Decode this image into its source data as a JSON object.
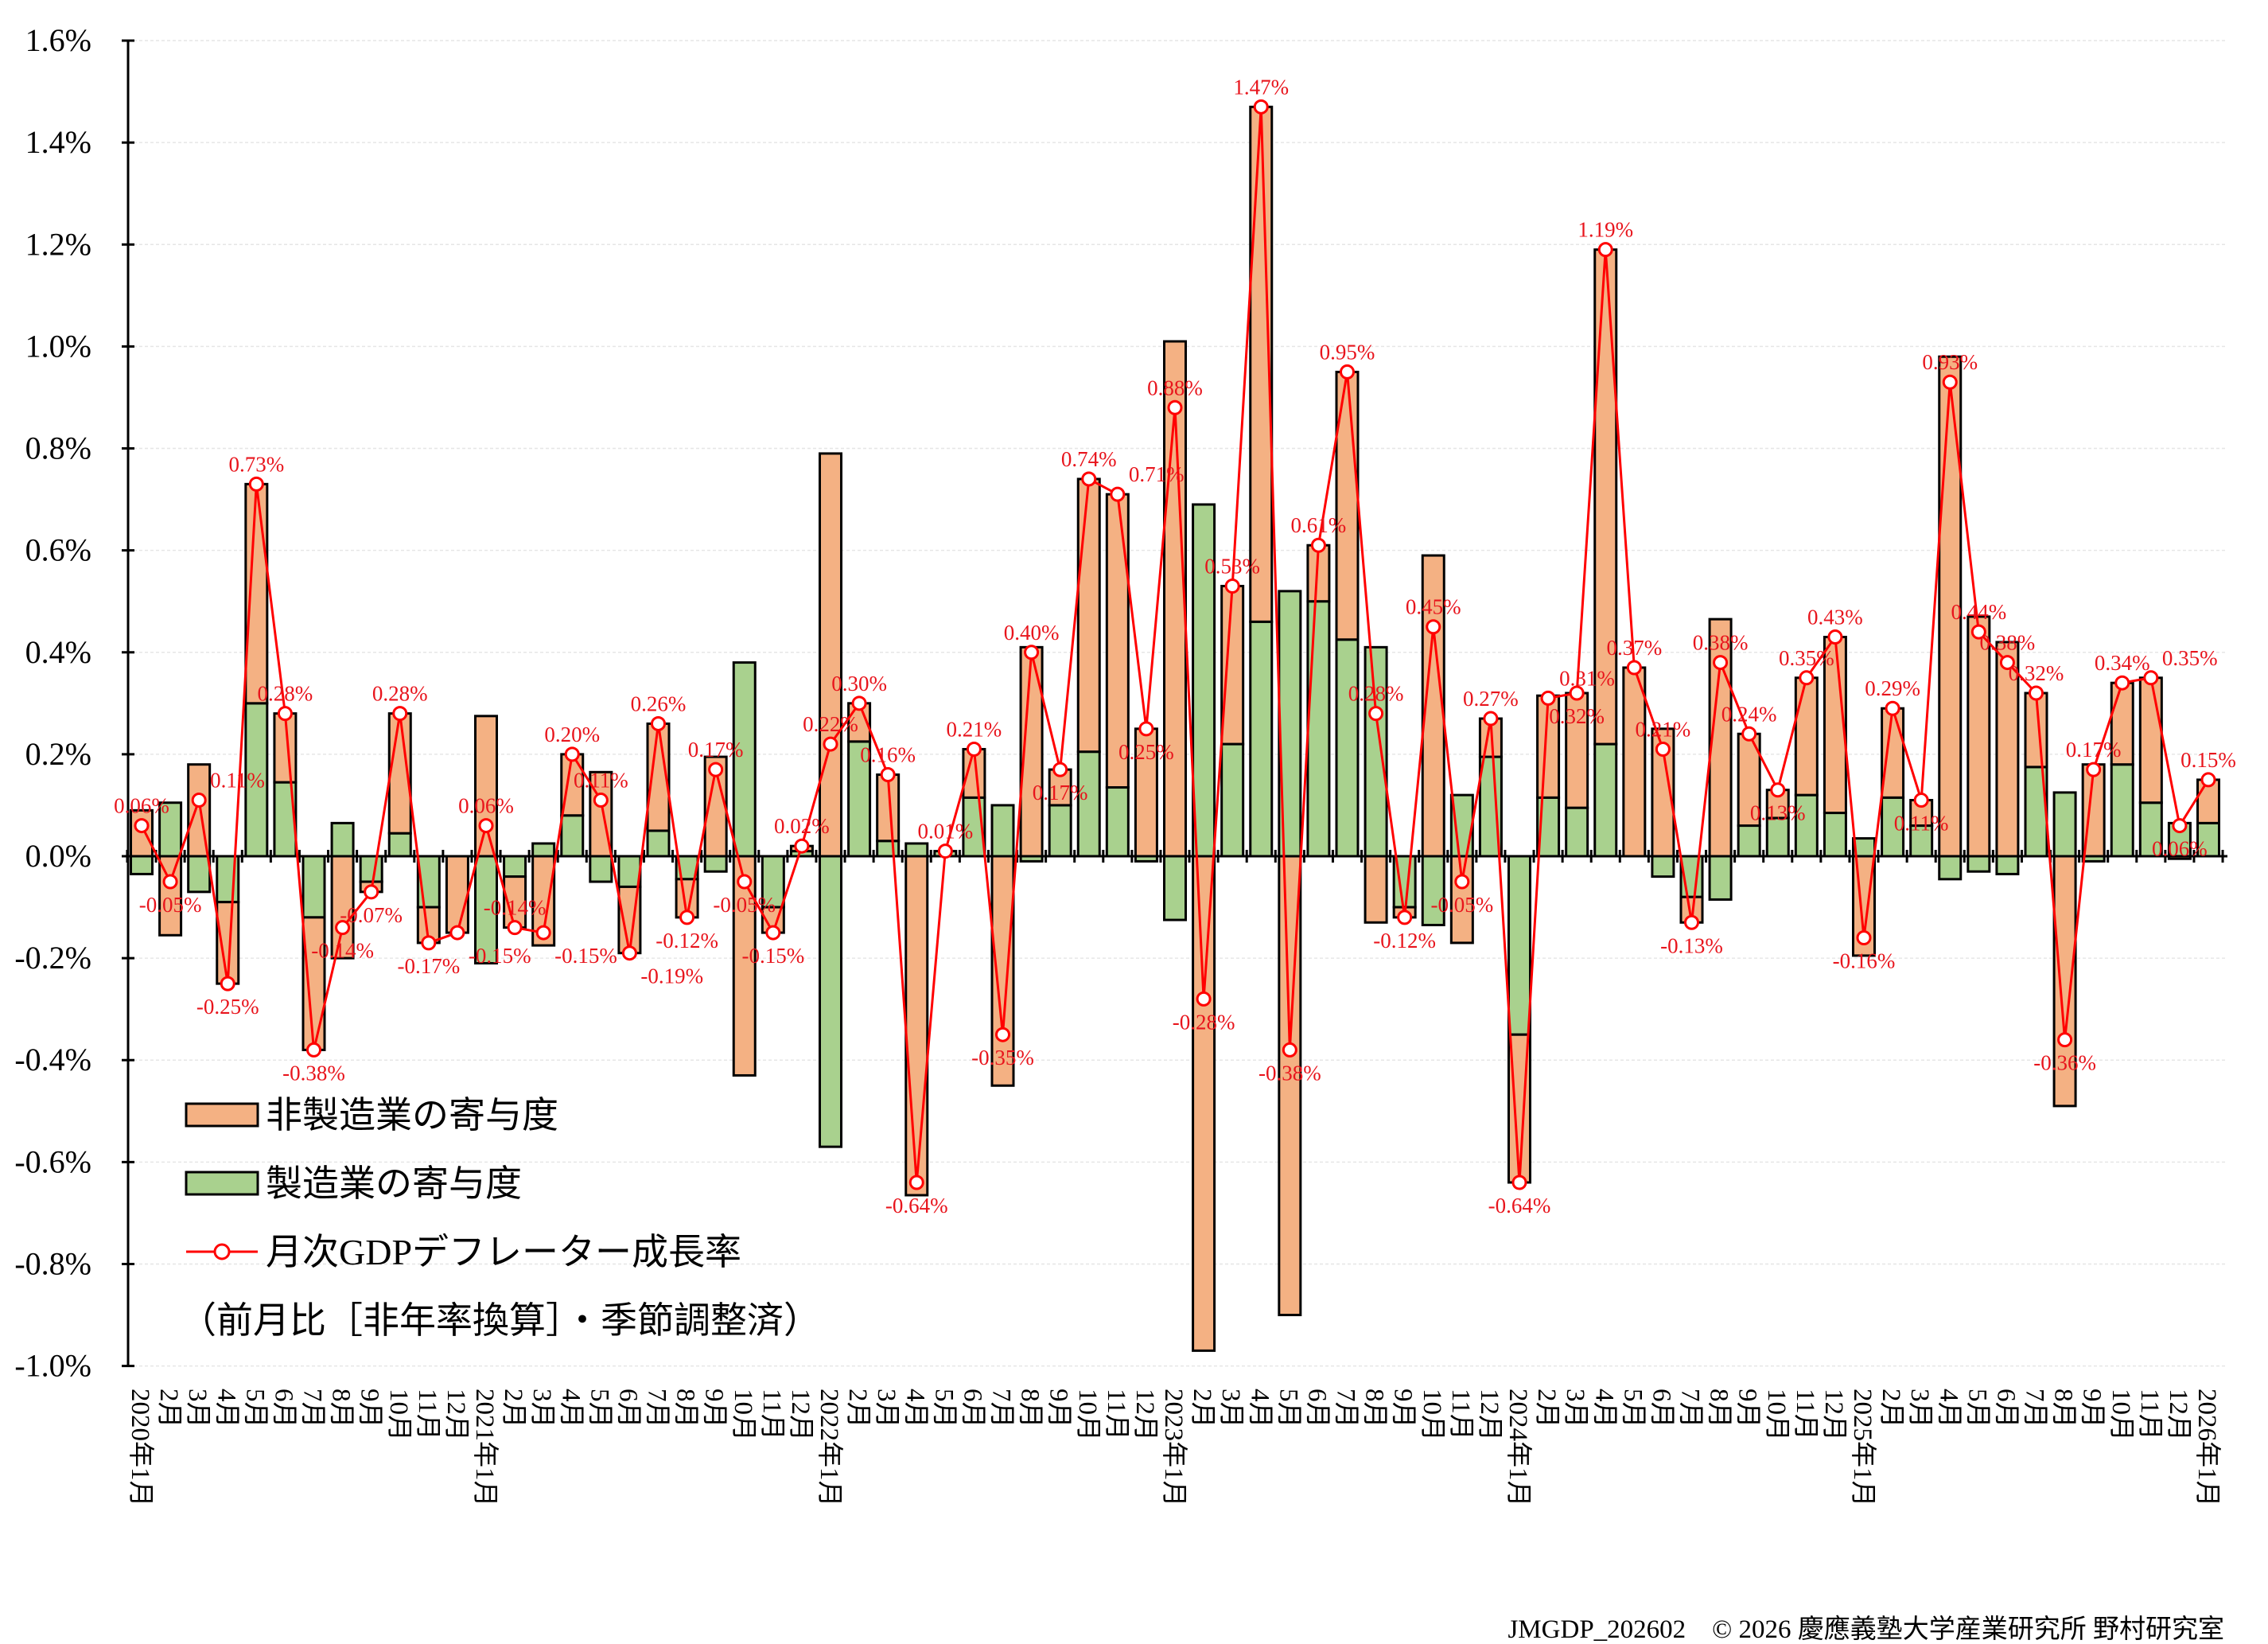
{
  "chart_data": {
    "type": "bar+line",
    "title": "",
    "xlabel": "",
    "ylabel": "",
    "ylim": [
      -1.0,
      1.6
    ],
    "y_ticks": [
      "-1.0%",
      "-0.8%",
      "-0.6%",
      "-0.4%",
      "-0.2%",
      "0.0%",
      "0.2%",
      "0.4%",
      "0.6%",
      "0.8%",
      "1.0%",
      "1.2%",
      "1.4%",
      "1.6%"
    ],
    "grid": true,
    "legend_position": "bottom-left",
    "categories": [
      "2020年1月",
      "2月",
      "3月",
      "4月",
      "5月",
      "6月",
      "7月",
      "8月",
      "9月",
      "10月",
      "11月",
      "12月",
      "2021年1月",
      "2月",
      "3月",
      "4月",
      "5月",
      "6月",
      "7月",
      "8月",
      "9月",
      "10月",
      "11月",
      "12月",
      "2022年1月",
      "2月",
      "3月",
      "4月",
      "5月",
      "6月",
      "7月",
      "8月",
      "9月",
      "10月",
      "11月",
      "12月",
      "2023年1月",
      "2月",
      "3月",
      "4月",
      "5月",
      "6月",
      "7月",
      "8月",
      "9月",
      "10月",
      "11月",
      "12月",
      "2024年1月",
      "2月",
      "3月",
      "4月",
      "5月",
      "6月",
      "7月",
      "8月",
      "9月",
      "10月",
      "11月",
      "12月",
      "2025年1月",
      "2月",
      "3月",
      "4月",
      "5月",
      "6月",
      "7月",
      "8月",
      "9月",
      "10月",
      "11月",
      "12月",
      "2026年1月"
    ],
    "series": [
      {
        "name": "非製造業の寄与度",
        "kind": "bar",
        "color": "#f4b183",
        "values": [
          0.09,
          -0.155,
          0.18,
          -0.16,
          0.43,
          0.135,
          -0.26,
          -0.2,
          -0.02,
          0.235,
          -0.07,
          -0.15,
          0.275,
          -0.1,
          -0.175,
          0.12,
          0.165,
          -0.13,
          0.21,
          -0.075,
          0.195,
          -0.43,
          -0.05,
          0.01,
          0.79,
          0.075,
          0.13,
          -0.665,
          0.0,
          0.095,
          -0.45,
          0.41,
          0.07,
          0.535,
          0.575,
          0.25,
          1.01,
          -0.97,
          0.31,
          1.01,
          -0.9,
          0.11,
          0.525,
          -0.13,
          -0.02,
          0.59,
          -0.17,
          0.075,
          -0.29,
          0.2,
          0.225,
          0.97,
          0.37,
          0.25,
          -0.05,
          0.465,
          0.18,
          0.055,
          0.23,
          0.345,
          -0.195,
          0.175,
          0.05,
          0.98,
          0.47,
          0.42,
          0.145,
          -0.49,
          0.18,
          0.16,
          0.245,
          -0.005,
          0.085
        ]
      },
      {
        "name": "製造業の寄与度",
        "kind": "bar",
        "color": "#a9d18e",
        "values": [
          -0.035,
          0.105,
          -0.07,
          -0.09,
          0.3,
          0.145,
          -0.12,
          0.065,
          -0.05,
          0.045,
          -0.1,
          0.0,
          -0.21,
          -0.04,
          0.025,
          0.08,
          -0.05,
          -0.06,
          0.05,
          -0.045,
          -0.03,
          0.38,
          -0.1,
          0.01,
          -0.57,
          0.225,
          0.03,
          0.025,
          0.01,
          0.115,
          0.1,
          -0.01,
          0.1,
          0.205,
          0.135,
          -0.01,
          -0.125,
          0.69,
          0.22,
          0.46,
          0.52,
          0.5,
          0.425,
          0.41,
          -0.1,
          -0.135,
          0.12,
          0.195,
          -0.35,
          0.115,
          0.095,
          0.22,
          0.0,
          -0.04,
          -0.08,
          -0.085,
          0.06,
          0.075,
          0.12,
          0.085,
          0.035,
          0.115,
          0.06,
          -0.045,
          -0.03,
          -0.035,
          0.175,
          0.125,
          -0.01,
          0.18,
          0.105,
          0.065,
          0.065
        ]
      },
      {
        "name": "月次GDPデフレーター成長率",
        "kind": "line",
        "color": "#ff0000",
        "values": [
          0.06,
          -0.05,
          0.11,
          -0.25,
          0.73,
          0.28,
          -0.38,
          -0.14,
          -0.07,
          0.28,
          -0.17,
          -0.15,
          0.06,
          -0.14,
          -0.15,
          0.2,
          0.11,
          -0.19,
          0.26,
          -0.12,
          0.17,
          -0.05,
          -0.15,
          0.02,
          0.22,
          0.3,
          0.16,
          -0.64,
          0.01,
          0.21,
          -0.35,
          0.4,
          0.17,
          0.74,
          0.71,
          0.25,
          0.88,
          -0.28,
          0.53,
          1.47,
          -0.38,
          0.61,
          0.95,
          0.28,
          -0.12,
          0.45,
          -0.05,
          0.27,
          -0.64,
          0.31,
          0.32,
          1.19,
          0.37,
          0.21,
          -0.13,
          0.38,
          0.24,
          0.13,
          0.35,
          0.43,
          -0.16,
          0.29,
          0.11,
          0.93,
          0.44,
          0.38,
          0.32,
          -0.36,
          0.17,
          0.34,
          0.35,
          0.06,
          0.15
        ],
        "labels": [
          "0.06%",
          "-0.05%",
          "0.11%",
          "-0.25%",
          "0.73%",
          "0.28%",
          "-0.38%",
          "-0.14%",
          "-0.07%",
          "0.28%",
          "-0.17%",
          "-0.15%",
          "0.06%",
          "-0.14%",
          "-0.15%",
          "0.20%",
          "0.11%",
          "-0.19%",
          "0.26%",
          "-0.12%",
          "0.17%",
          "-0.05%",
          "-0.15%",
          "0.02%",
          "0.22%",
          "0.30%",
          "0.16%",
          "-0.64%",
          "0.01%",
          "0.21%",
          "-0.35%",
          "0.40%",
          "0.17%",
          "0.74%",
          "0.71%",
          "0.25%",
          "0.88%",
          "-0.28%",
          "0.53%",
          "1.47%",
          "-0.38%",
          "0.61%",
          "0.95%",
          "0.28%",
          "-0.12%",
          "0.45%",
          "-0.05%",
          "0.27%",
          "-0.64%",
          "0.31%",
          "0.32%",
          "1.19%",
          "0.37%",
          "0.21%",
          "-0.13%",
          "0.38%",
          "0.24%",
          "0.13%",
          "0.35%",
          "0.43%",
          "-0.16%",
          "0.29%",
          "0.11%",
          "0.93%",
          "0.44%",
          "0.38%",
          "0.32%",
          "-0.36%",
          "0.17%",
          "0.34%",
          "0.35%",
          "0.06%",
          "0.15%"
        ]
      }
    ],
    "legend_note": "（前月比［非年率換算］・季節調整済）"
  },
  "footer": "JMGDP_202602　© 2026 慶應義塾大学産業研究所 野村研究室"
}
